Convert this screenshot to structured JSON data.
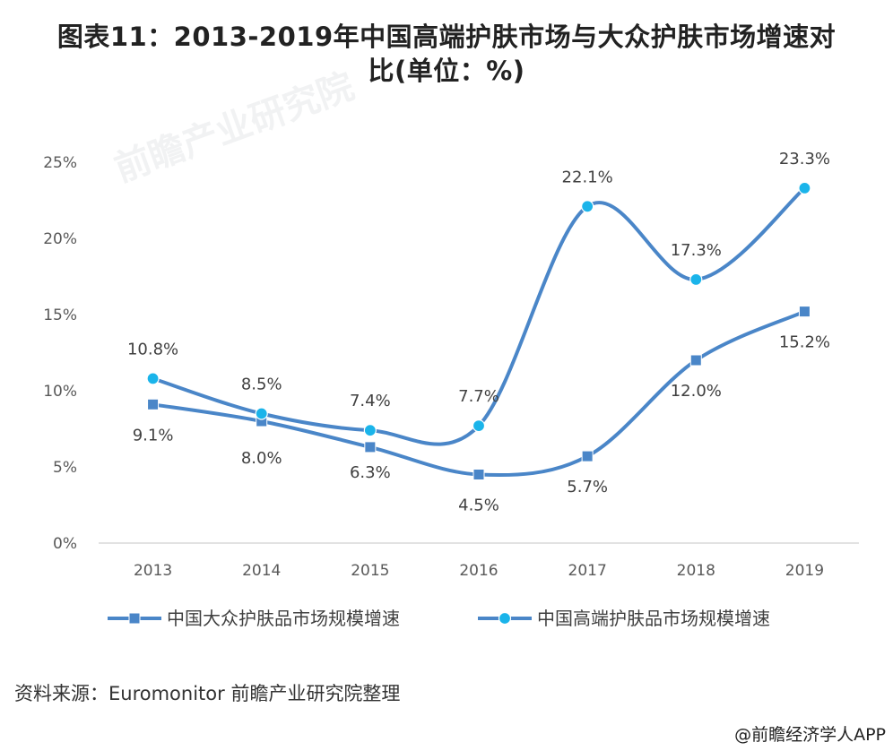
{
  "title": {
    "line1": "图表11：2013-2019年中国高端护肤市场与大众护肤市场增速对",
    "line2": "比(单位：%)"
  },
  "source": "资料来源：Euromonitor 前瞻产业研究院整理",
  "credit": "@前瞻经济学人APP",
  "watermark": "前瞻产业研究院",
  "chart_data": {
    "type": "line",
    "categories": [
      "2013",
      "2014",
      "2015",
      "2016",
      "2017",
      "2018",
      "2019"
    ],
    "ylim": [
      0,
      25
    ],
    "yticks": [
      "0%",
      "5%",
      "10%",
      "15%",
      "20%",
      "25%"
    ],
    "grid": false,
    "legend_position": "bottom",
    "series": [
      {
        "name": "中国大众护肤品市场规模增速",
        "marker": "square",
        "color": "#4a86c8",
        "values": [
          9.1,
          8.0,
          6.3,
          4.5,
          5.7,
          12.0,
          15.2
        ],
        "labels": [
          "9.1%",
          "8.0%",
          "6.3%",
          "4.5%",
          "5.7%",
          "12.0%",
          "15.2%"
        ]
      },
      {
        "name": "中国高端护肤品市场规模增速",
        "marker": "circle",
        "color": "#4a86c8",
        "markerColor": "#1ab4ea",
        "values": [
          10.8,
          8.5,
          7.4,
          7.7,
          22.1,
          17.3,
          23.3
        ],
        "labels": [
          "10.8%",
          "8.5%",
          "7.4%",
          "7.7%",
          "22.1%",
          "17.3%",
          "23.3%"
        ]
      }
    ]
  }
}
